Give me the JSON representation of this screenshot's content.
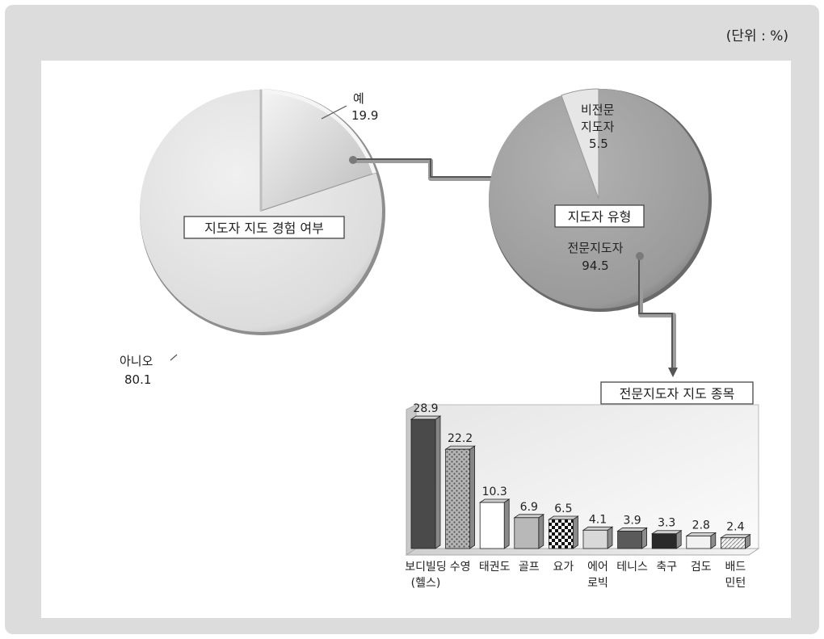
{
  "unit_label": "(단위 : %)",
  "chart_data": [
    {
      "type": "pie",
      "title": "지도자 지도 경험 여부",
      "slices": [
        {
          "label": "예",
          "value": 19.9,
          "value_text": "19.9"
        },
        {
          "label": "아니오",
          "value": 80.1,
          "value_text": "80.1"
        }
      ]
    },
    {
      "type": "pie",
      "title": "지도자 유형",
      "slices": [
        {
          "label": "비전문 지도자",
          "label_lines": [
            "비전문",
            "지도자"
          ],
          "value": 5.5,
          "value_text": "5.5"
        },
        {
          "label": "전문지도자",
          "label_lines": [
            "전문지도자"
          ],
          "value": 94.5,
          "value_text": "94.5"
        }
      ]
    },
    {
      "type": "bar",
      "title": "전문지도자 지도 종목",
      "categories": [
        {
          "label": "보디빌딩(헬스)",
          "lines": [
            "보디빌딩",
            "(헬스)"
          ]
        },
        {
          "label": "수영",
          "lines": [
            "수영"
          ]
        },
        {
          "label": "태권도",
          "lines": [
            "태권도"
          ]
        },
        {
          "label": "골프",
          "lines": [
            "골프"
          ]
        },
        {
          "label": "요가",
          "lines": [
            "요가"
          ]
        },
        {
          "label": "에어로빅",
          "lines": [
            "에어",
            "로빅"
          ]
        },
        {
          "label": "테니스",
          "lines": [
            "테니스"
          ]
        },
        {
          "label": "축구",
          "lines": [
            "축구"
          ]
        },
        {
          "label": "검도",
          "lines": [
            "검도"
          ]
        },
        {
          "label": "배드민턴",
          "lines": [
            "배드",
            "민턴"
          ]
        }
      ],
      "values": [
        28.9,
        22.2,
        10.3,
        6.9,
        6.5,
        4.1,
        3.9,
        3.3,
        2.8,
        2.4
      ],
      "value_texts": [
        "28.9",
        "22.2",
        "10.3",
        "6.9",
        "6.5",
        "4.1",
        "3.9",
        "3.3",
        "2.8",
        "2.4"
      ],
      "ylim": [
        0,
        30
      ],
      "colors": [
        "#4a4a4a",
        "#9a9a9a",
        "#ffffff",
        "#b8b8b8",
        "#1a1a1a",
        "#d8d8d8",
        "#5a5a5a",
        "#2a2a2a",
        "#f2f2f2",
        "#e4e4e4"
      ],
      "patterns": [
        "solid",
        "dots",
        "solid",
        "solid",
        "checker",
        "solid",
        "solid",
        "solid",
        "solid",
        "hatch"
      ]
    }
  ]
}
